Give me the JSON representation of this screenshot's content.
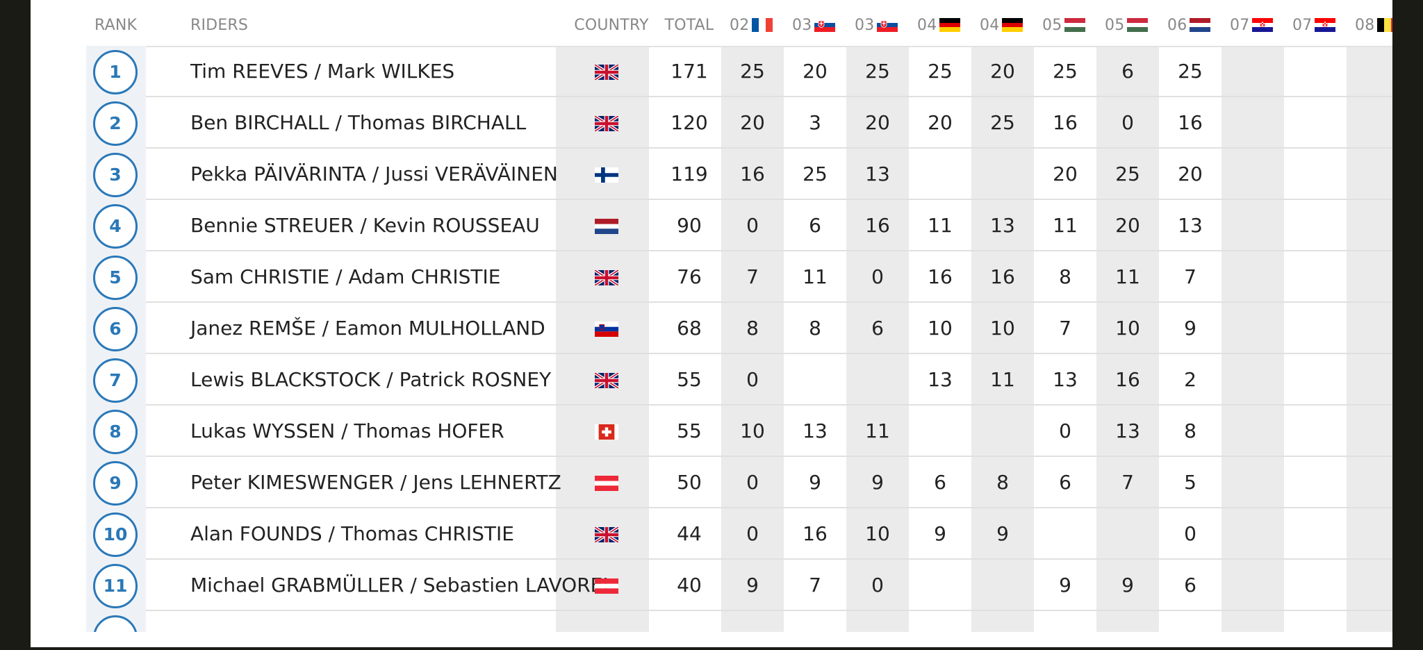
{
  "headers": {
    "rank": "RANK",
    "riders": "RIDERS",
    "country": "COUNTRY",
    "total": "TOTAL",
    "rounds": [
      {
        "label": "02",
        "flag": "fr"
      },
      {
        "label": "03",
        "flag": "sk"
      },
      {
        "label": "03",
        "flag": "sk"
      },
      {
        "label": "04",
        "flag": "de"
      },
      {
        "label": "04",
        "flag": "de"
      },
      {
        "label": "05",
        "flag": "hu"
      },
      {
        "label": "05",
        "flag": "hu"
      },
      {
        "label": "06",
        "flag": "nl"
      },
      {
        "label": "07",
        "flag": "hr"
      },
      {
        "label": "07",
        "flag": "hr"
      },
      {
        "label": "08",
        "flag": "be"
      }
    ]
  },
  "rows": [
    {
      "rank": "1",
      "riders": "Tim REEVES / Mark WILKES",
      "country": "gb",
      "total": "171",
      "points": [
        "25",
        "20",
        "25",
        "25",
        "20",
        "25",
        "6",
        "25",
        "",
        "",
        ""
      ]
    },
    {
      "rank": "2",
      "riders": "Ben BIRCHALL / Thomas BIRCHALL",
      "country": "gb",
      "total": "120",
      "points": [
        "20",
        "3",
        "20",
        "20",
        "25",
        "16",
        "0",
        "16",
        "",
        "",
        ""
      ]
    },
    {
      "rank": "3",
      "riders": "Pekka PÄIVÄRINTA / Jussi VERÄVÄINEN",
      "country": "fi",
      "total": "119",
      "points": [
        "16",
        "25",
        "13",
        "",
        "",
        "20",
        "25",
        "20",
        "",
        "",
        ""
      ]
    },
    {
      "rank": "4",
      "riders": "Bennie STREUER / Kevin ROUSSEAU",
      "country": "nl",
      "total": "90",
      "points": [
        "0",
        "6",
        "16",
        "11",
        "13",
        "11",
        "20",
        "13",
        "",
        "",
        ""
      ]
    },
    {
      "rank": "5",
      "riders": "Sam CHRISTIE / Adam CHRISTIE",
      "country": "gb",
      "total": "76",
      "points": [
        "7",
        "11",
        "0",
        "16",
        "16",
        "8",
        "11",
        "7",
        "",
        "",
        ""
      ]
    },
    {
      "rank": "6",
      "riders": "Janez REMŠE / Eamon MULHOLLAND",
      "country": "si",
      "total": "68",
      "points": [
        "8",
        "8",
        "6",
        "10",
        "10",
        "7",
        "10",
        "9",
        "",
        "",
        ""
      ]
    },
    {
      "rank": "7",
      "riders": "Lewis BLACKSTOCK / Patrick ROSNEY",
      "country": "gb",
      "total": "55",
      "points": [
        "0",
        "",
        "",
        "13",
        "11",
        "13",
        "16",
        "2",
        "",
        "",
        ""
      ]
    },
    {
      "rank": "8",
      "riders": "Lukas WYSSEN / Thomas HOFER",
      "country": "ch",
      "total": "55",
      "points": [
        "10",
        "13",
        "11",
        "",
        "",
        "0",
        "13",
        "8",
        "",
        "",
        ""
      ]
    },
    {
      "rank": "9",
      "riders": "Peter KIMESWENGER / Jens LEHNERTZ",
      "country": "at",
      "total": "50",
      "points": [
        "0",
        "9",
        "9",
        "6",
        "8",
        "6",
        "7",
        "5",
        "",
        "",
        ""
      ]
    },
    {
      "rank": "10",
      "riders": "Alan FOUNDS / Thomas CHRISTIE",
      "country": "gb",
      "total": "44",
      "points": [
        "0",
        "16",
        "10",
        "9",
        "9",
        "",
        "",
        "0",
        "",
        "",
        ""
      ]
    },
    {
      "rank": "11",
      "riders": "Michael GRABMÜLLER / Sebastien LAVOREL",
      "country": "at",
      "total": "40",
      "points": [
        "9",
        "7",
        "0",
        "",
        "",
        "9",
        "9",
        "6",
        "",
        "",
        ""
      ]
    }
  ],
  "colors": {
    "accent": "#2a78b8",
    "stripe": "#ebebeb",
    "rank_column": "#eef2f6"
  }
}
